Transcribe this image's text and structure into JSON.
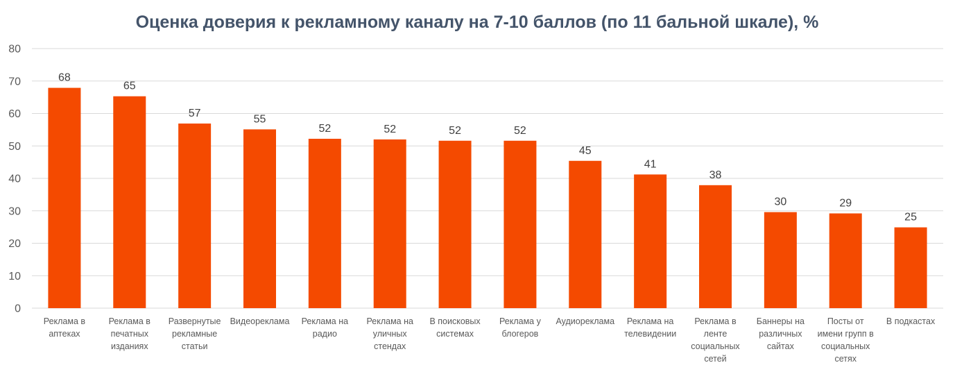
{
  "chart_data": {
    "type": "bar",
    "title": "Оценка доверия к рекламному каналу на 7-10 баллов (по 11 бальной шкале), %",
    "xlabel": "",
    "ylabel": "",
    "ylim": [
      0,
      80
    ],
    "yticks": [
      0,
      10,
      20,
      30,
      40,
      50,
      60,
      70,
      80
    ],
    "grid": true,
    "legend": "none",
    "bar_color": "#f44a00",
    "categories": [
      [
        "Реклама в",
        "аптеках"
      ],
      [
        "Реклама в",
        "печатных",
        "изданиях"
      ],
      [
        "Развернутые",
        "рекламные",
        "статьи"
      ],
      [
        "Видеореклама"
      ],
      [
        "Реклама на",
        "радио"
      ],
      [
        "Реклама на",
        "уличных",
        "стендах"
      ],
      [
        "В поисковых",
        "системах"
      ],
      [
        "Реклама у",
        "блогеров"
      ],
      [
        "Аудиореклама"
      ],
      [
        "Реклама на",
        "телевидении"
      ],
      [
        "Реклама в",
        "ленте",
        "социальных",
        "сетей"
      ],
      [
        "Баннеры на",
        "различных",
        "сайтах"
      ],
      [
        "Посты от",
        "имени групп в",
        "социальных",
        "сетях"
      ],
      [
        "В подкастах"
      ]
    ],
    "values": [
      67.9,
      65.3,
      56.9,
      55.1,
      52.2,
      52.0,
      51.6,
      51.6,
      45.4,
      41.2,
      37.9,
      29.6,
      29.2,
      24.9
    ],
    "data_labels": [
      "68",
      "65",
      "57",
      "55",
      "52",
      "52",
      "52",
      "52",
      "45",
      "41",
      "38",
      "30",
      "29",
      "25"
    ]
  }
}
